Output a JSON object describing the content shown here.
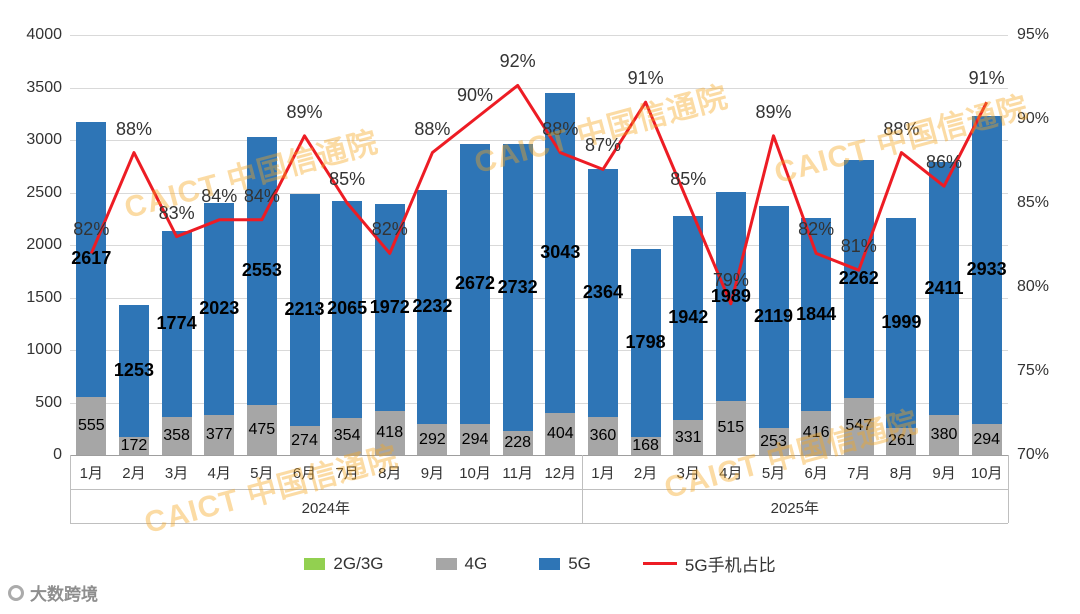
{
  "watermark": {
    "text": "CAICT 中国信通院"
  },
  "footer": {
    "brand": "大数跨境"
  },
  "legend": {
    "items": [
      {
        "key": "2g3g",
        "label": "2G/3G",
        "color": "#92d050",
        "type": "square"
      },
      {
        "key": "4g",
        "label": "4G",
        "color": "#a6a6a6",
        "type": "square"
      },
      {
        "key": "5g",
        "label": "5G",
        "color": "#2e75b6",
        "type": "square"
      },
      {
        "key": "5g-share",
        "label": "5G手机占比",
        "color": "#ed1c24",
        "type": "line"
      }
    ]
  },
  "chart_data": {
    "type": "bar",
    "subtype": "stacked-bars-with-line",
    "title": "",
    "categories": [
      "1月",
      "2月",
      "3月",
      "4月",
      "5月",
      "6月",
      "7月",
      "8月",
      "9月",
      "10月",
      "11月",
      "12月",
      "1月",
      "2月",
      "3月",
      "4月",
      "5月",
      "6月",
      "7月",
      "8月",
      "9月",
      "10月"
    ],
    "year_groups": [
      {
        "label": "2024年",
        "count": 12
      },
      {
        "label": "2025年",
        "count": 10
      }
    ],
    "series": [
      {
        "name": "2G/3G",
        "color": "#92d050",
        "values": [
          0,
          0,
          0,
          0,
          0,
          0,
          0,
          0,
          0,
          0,
          0,
          0,
          0,
          0,
          0,
          0,
          0,
          0,
          0,
          0,
          0,
          0
        ]
      },
      {
        "name": "4G",
        "color": "#a6a6a6",
        "values": [
          555,
          172,
          358,
          377,
          475,
          274,
          354,
          418,
          292,
          294,
          228,
          404,
          360,
          168,
          331,
          515,
          253,
          416,
          547,
          261,
          380,
          294
        ]
      },
      {
        "name": "5G",
        "color": "#2e75b6",
        "values": [
          2617,
          1253,
          1774,
          2023,
          2553,
          2213,
          2065,
          1972,
          2232,
          2672,
          2732,
          3043,
          2364,
          1798,
          1942,
          1989,
          2119,
          1844,
          2262,
          1999,
          2411,
          2933
        ]
      }
    ],
    "line": {
      "name": "5G手机占比",
      "color": "#ed1c24",
      "unit": "%",
      "values_pct": [
        82,
        88,
        83,
        84,
        84,
        89,
        85,
        82,
        88,
        90,
        92,
        88,
        87,
        91,
        85,
        79,
        89,
        82,
        81,
        88,
        86,
        91
      ]
    },
    "left_axis": {
      "min": 0,
      "max": 4000,
      "ticks": [
        0,
        500,
        1000,
        1500,
        2000,
        2500,
        3000,
        3500,
        4000
      ]
    },
    "right_axis": {
      "min": 70,
      "max": 95,
      "ticks": [
        70,
        75,
        80,
        85,
        90,
        95
      ]
    },
    "grid": true,
    "legend_position": "bottom"
  }
}
